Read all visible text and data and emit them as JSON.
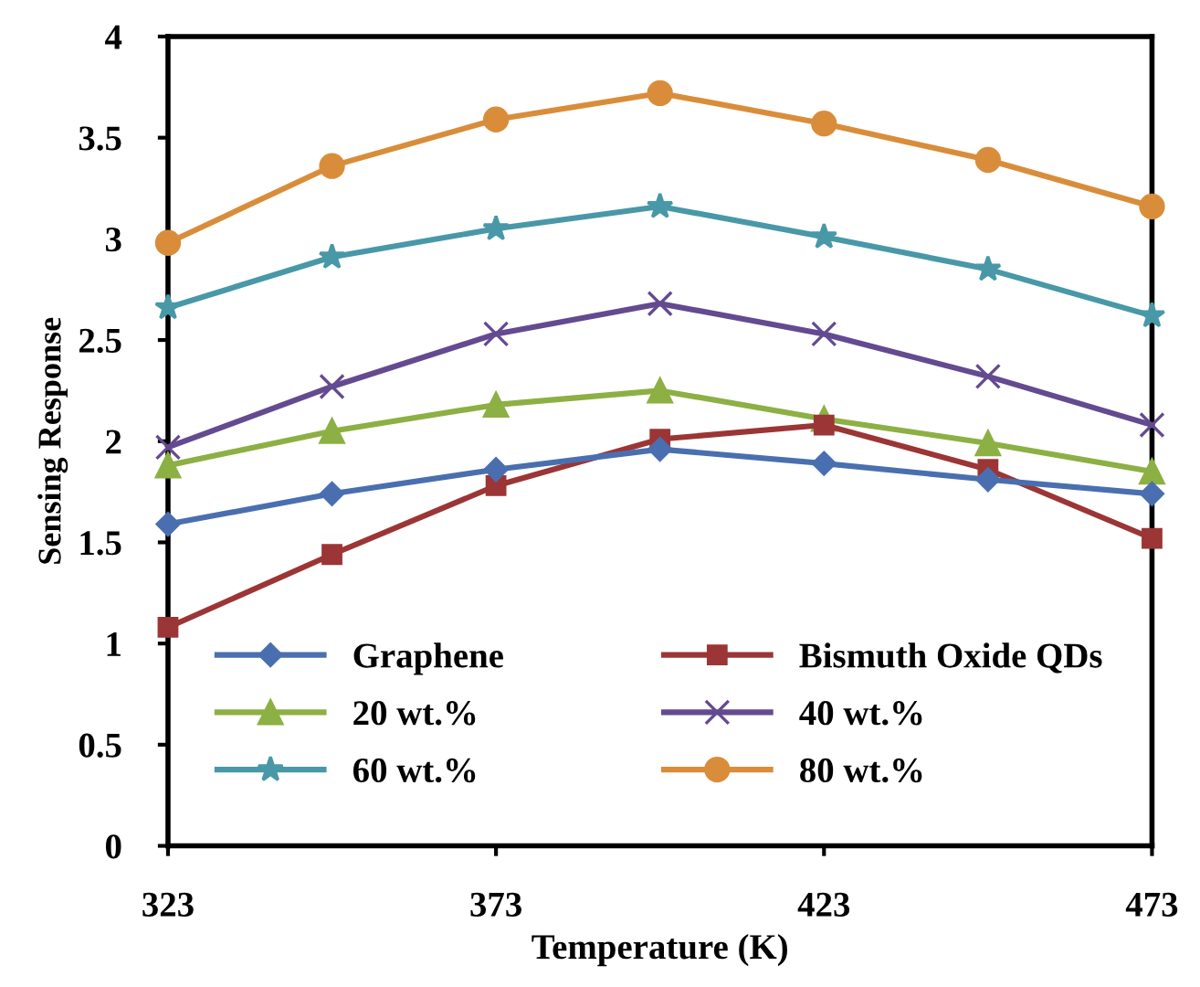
{
  "chart_data": {
    "type": "line",
    "xlabel": "Temperature (K)",
    "ylabel": "Sensing Response",
    "x": [
      323,
      348,
      373,
      398,
      423,
      448,
      473
    ],
    "series": [
      {
        "name": "Graphene",
        "color": "#4a6fb0",
        "marker": "diamond",
        "values": [
          1.59,
          1.74,
          1.86,
          1.96,
          1.89,
          1.81,
          1.74
        ]
      },
      {
        "name": "Bismuth Oxide QDs",
        "color": "#9c3535",
        "marker": "square",
        "values": [
          1.08,
          1.44,
          1.78,
          2.01,
          2.08,
          1.86,
          1.52
        ]
      },
      {
        "name": "20 wt.%",
        "color": "#8cb043",
        "marker": "triangle",
        "values": [
          1.88,
          2.05,
          2.18,
          2.25,
          2.11,
          1.99,
          1.85
        ]
      },
      {
        "name": "40 wt.%",
        "color": "#644a90",
        "marker": "cross",
        "values": [
          1.97,
          2.27,
          2.53,
          2.68,
          2.53,
          2.32,
          2.08
        ]
      },
      {
        "name": "60 wt.%",
        "color": "#4898a8",
        "marker": "star",
        "values": [
          2.66,
          2.91,
          3.05,
          3.16,
          3.01,
          2.85,
          2.62
        ]
      },
      {
        "name": "80 wt.%",
        "color": "#d98d3a",
        "marker": "circle",
        "values": [
          2.98,
          3.36,
          3.59,
          3.72,
          3.57,
          3.39,
          3.16
        ]
      }
    ],
    "xlim": [
      323,
      473
    ],
    "xticks": [
      323,
      373,
      423,
      473
    ],
    "ylim": [
      0,
      4
    ],
    "yticks": [
      0,
      0.5,
      1,
      1.5,
      2,
      2.5,
      3,
      3.5,
      4
    ],
    "grid": false,
    "legend": "bottom",
    "line_style": "solid"
  }
}
